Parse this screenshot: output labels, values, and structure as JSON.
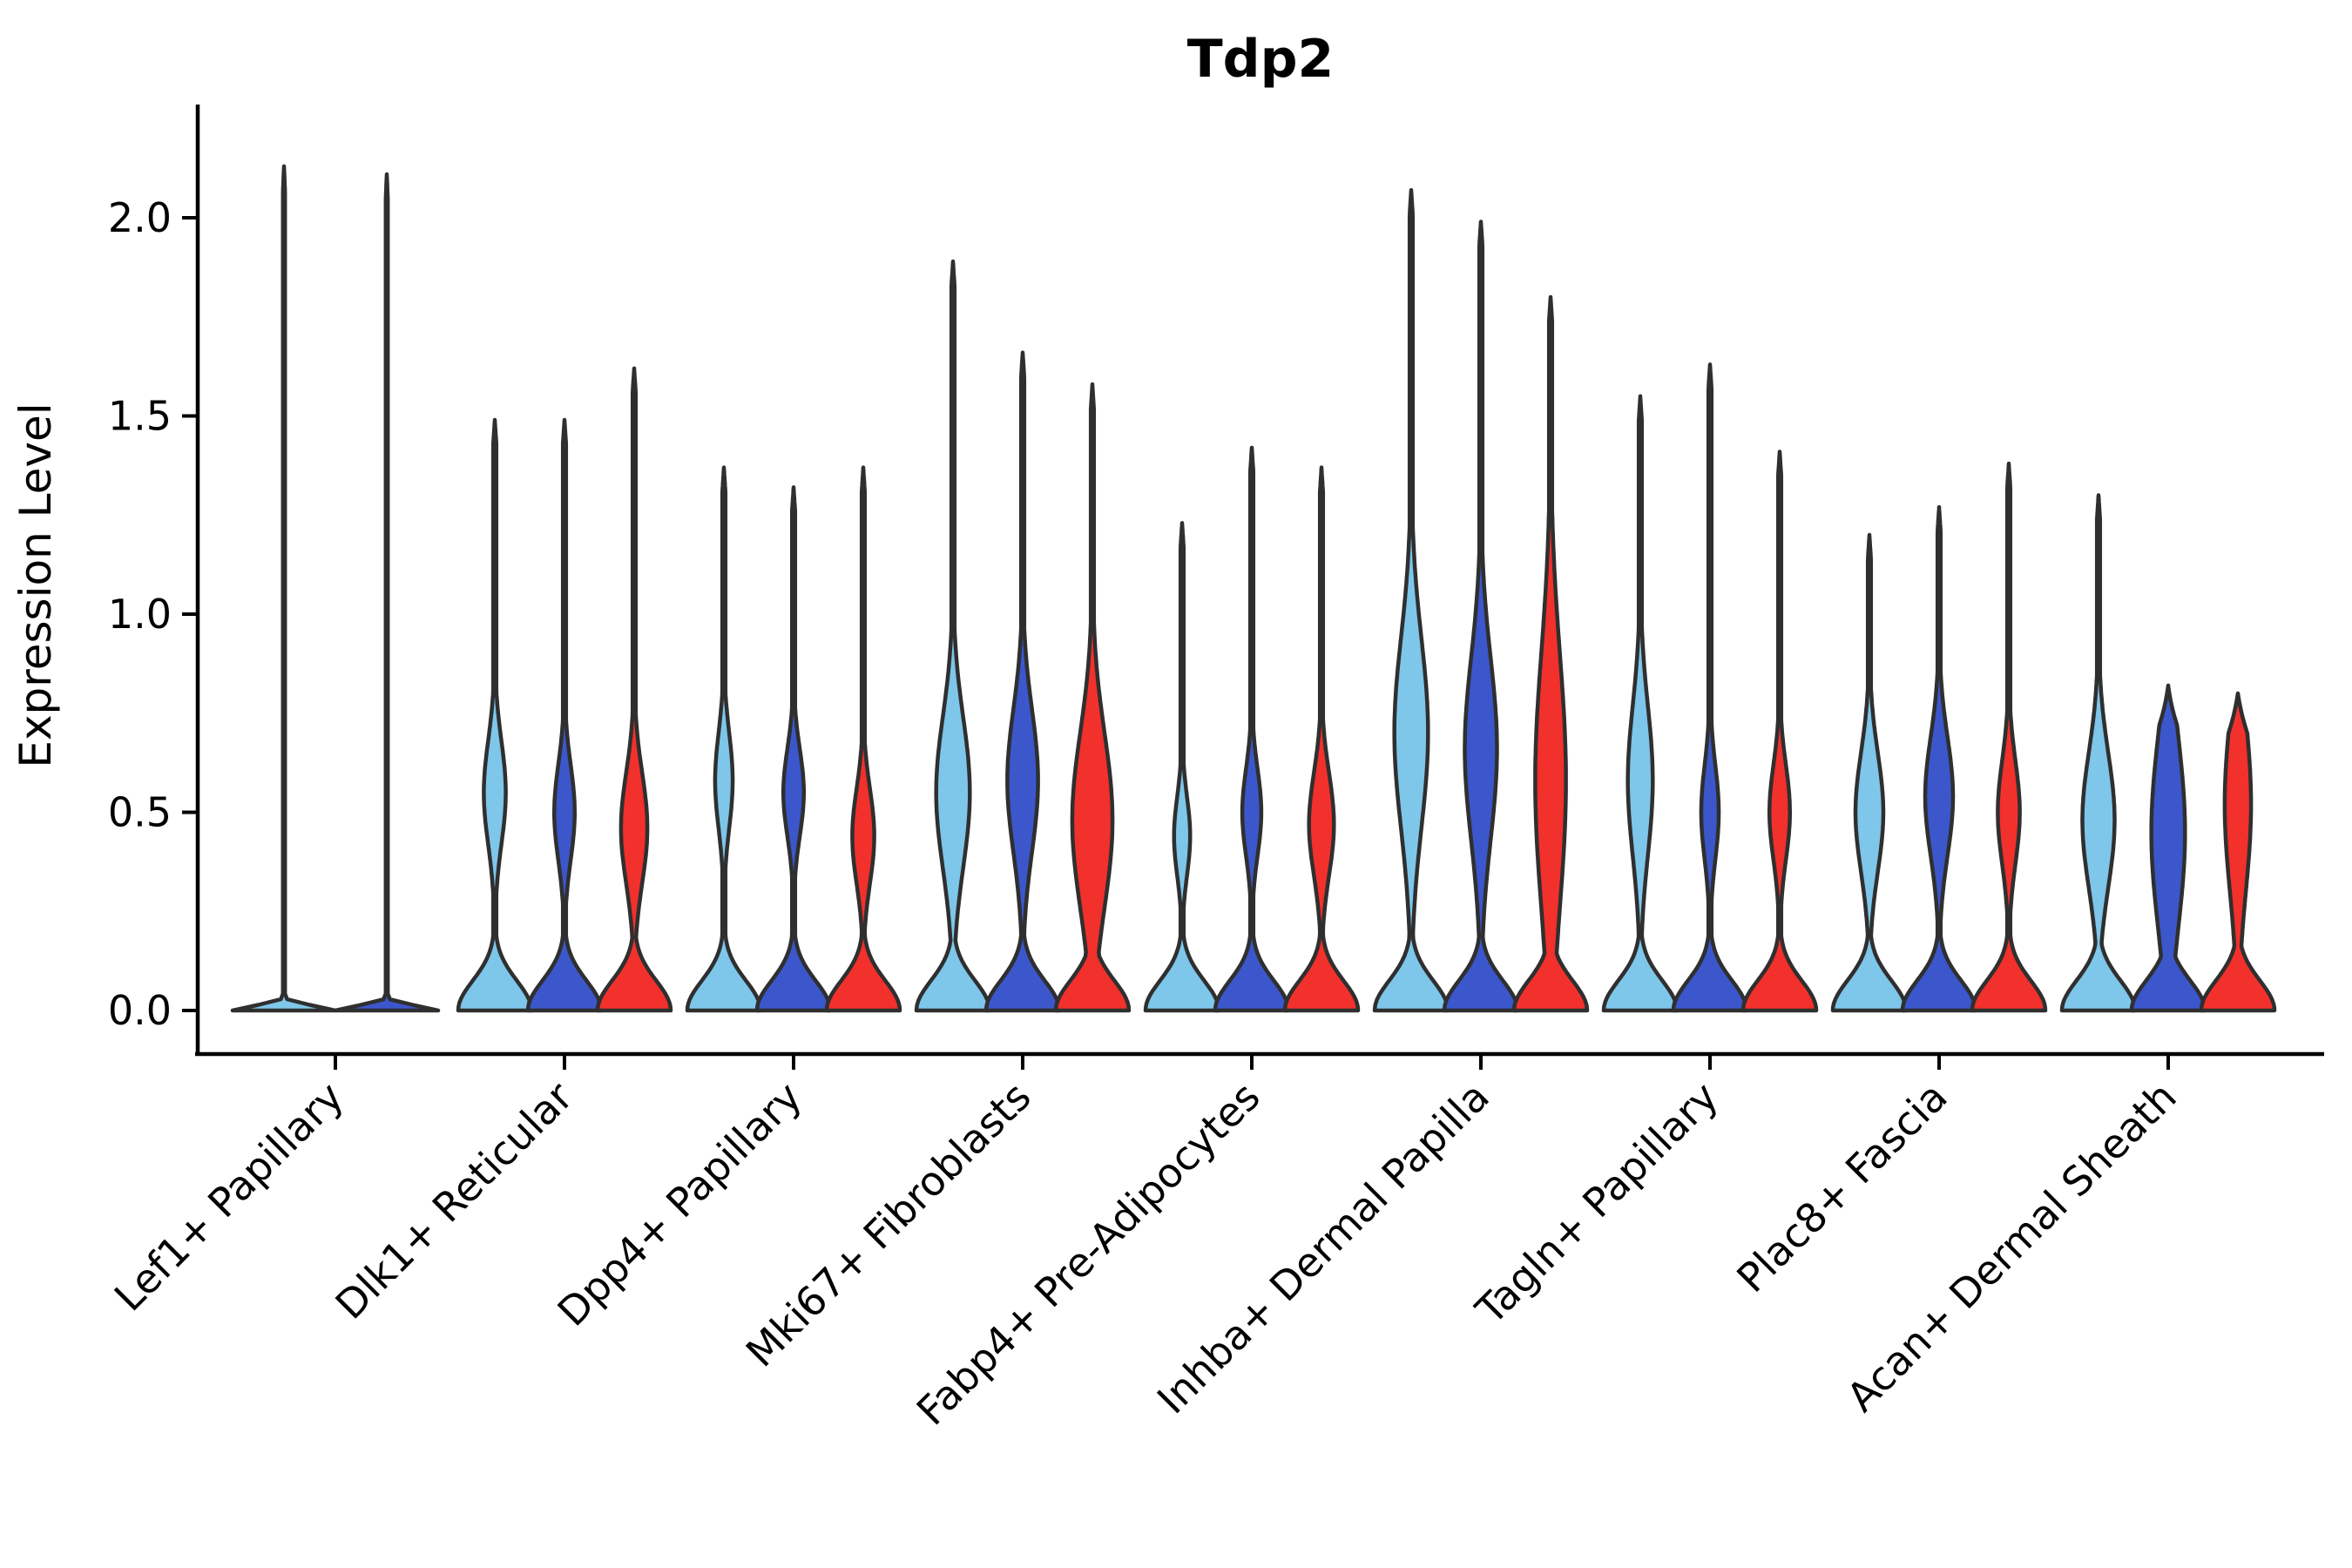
{
  "title": "Tdp2",
  "chart_data": {
    "type": "violin",
    "title": "Tdp2",
    "subtitle": "",
    "xlabel": "",
    "ylabel": "Expression Level",
    "grid": false,
    "legend_position": "none",
    "ylim": [
      -0.06,
      2.28
    ],
    "ytick_labels": [
      "0.0",
      "0.5",
      "1.0",
      "1.5",
      "2.0"
    ],
    "ytick_values": [
      0,
      0.5,
      1.0,
      1.5,
      2.0
    ],
    "split_colors": [
      "#7EC6EA",
      "#3B57CB",
      "#F2302C"
    ],
    "outline_color": "#2F2F2F",
    "axis_color": "#000000",
    "categories": [
      "Lef1+ Papillary",
      "Dlk1+ Reticular",
      "Dpp4+ Papillary",
      "Mki67+ Fibroblasts",
      "Fabp4+ Pre-Adipocytes",
      "Inhba+ Dermal Papilla",
      "Tagln+ Papillary",
      "Plac8+ Fascia",
      "Acan+ Dermal Sheath"
    ],
    "violins": [
      {
        "category": "Lef1+ Papillary",
        "slot_half": 59,
        "items": [
          {
            "split": 0,
            "max": 2.13,
            "offset": -59,
            "bc": 0,
            "bw": 0,
            "bs": 0.1,
            "base_sigma": 0.012,
            "stem": 0.02
          },
          {
            "split": 1,
            "max": 2.11,
            "offset": 59,
            "bc": 0,
            "bw": 0,
            "bs": 0.1,
            "base_sigma": 0.012,
            "stem": 0.02
          }
        ]
      },
      {
        "category": "Dlk1+ Reticular",
        "slot_half": 42,
        "items": [
          {
            "split": 0,
            "max": 1.49,
            "offset": -80,
            "bc": 0.55,
            "bw": 0.3,
            "bs": 0.13
          },
          {
            "split": 1,
            "max": 1.49,
            "offset": 0,
            "bc": 0.5,
            "bw": 0.28,
            "bs": 0.12
          },
          {
            "split": 2,
            "max": 1.62,
            "offset": 80,
            "bc": 0.46,
            "bw": 0.36,
            "bs": 0.14
          }
        ]
      },
      {
        "category": "Dpp4+ Papillary",
        "slot_half": 42,
        "items": [
          {
            "split": 0,
            "max": 1.37,
            "offset": -80,
            "bc": 0.58,
            "bw": 0.24,
            "bs": 0.12
          },
          {
            "split": 1,
            "max": 1.32,
            "offset": 0,
            "bc": 0.55,
            "bw": 0.28,
            "bs": 0.11
          },
          {
            "split": 2,
            "max": 1.37,
            "offset": 80,
            "bc": 0.44,
            "bw": 0.3,
            "bs": 0.12
          }
        ]
      },
      {
        "category": "Mki67+ Fibroblasts",
        "slot_half": 42,
        "items": [
          {
            "split": 0,
            "max": 1.89,
            "offset": -80,
            "bc": 0.55,
            "bw": 0.46,
            "bs": 0.19
          },
          {
            "split": 1,
            "max": 1.66,
            "offset": 0,
            "bc": 0.58,
            "bw": 0.42,
            "bs": 0.18
          },
          {
            "split": 2,
            "max": 1.58,
            "offset": 80,
            "bc": 0.48,
            "bw": 0.55,
            "bs": 0.22
          }
        ]
      },
      {
        "category": "Fabp4+ Pre-Adipocytes",
        "slot_half": 42,
        "items": [
          {
            "split": 0,
            "max": 1.23,
            "offset": -80,
            "bc": 0.44,
            "bw": 0.22,
            "bs": 0.1
          },
          {
            "split": 1,
            "max": 1.42,
            "offset": 0,
            "bc": 0.5,
            "bw": 0.26,
            "bs": 0.11
          },
          {
            "split": 2,
            "max": 1.37,
            "offset": 80,
            "bc": 0.47,
            "bw": 0.34,
            "bs": 0.13
          }
        ]
      },
      {
        "category": "Inhba+ Dermal Papilla",
        "slot_half": 42,
        "items": [
          {
            "split": 0,
            "max": 2.07,
            "offset": -80,
            "bc": 0.7,
            "bw": 0.46,
            "bs": 0.24
          },
          {
            "split": 1,
            "max": 1.99,
            "offset": 0,
            "bc": 0.66,
            "bw": 0.44,
            "bs": 0.23
          },
          {
            "split": 2,
            "max": 1.8,
            "offset": 80,
            "bc": 0.58,
            "bw": 0.42,
            "bs": 0.32
          }
        ]
      },
      {
        "category": "Tagln+ Papillary",
        "slot_half": 42,
        "items": [
          {
            "split": 0,
            "max": 1.55,
            "offset": -80,
            "bc": 0.58,
            "bw": 0.34,
            "bs": 0.19
          },
          {
            "split": 1,
            "max": 1.63,
            "offset": 0,
            "bc": 0.5,
            "bw": 0.24,
            "bs": 0.12
          },
          {
            "split": 2,
            "max": 1.41,
            "offset": 80,
            "bc": 0.5,
            "bw": 0.28,
            "bs": 0.12
          }
        ]
      },
      {
        "category": "Plac8+ Fascia",
        "slot_half": 42,
        "items": [
          {
            "split": 0,
            "max": 1.2,
            "offset": -80,
            "bc": 0.5,
            "bw": 0.38,
            "bs": 0.15
          },
          {
            "split": 1,
            "max": 1.27,
            "offset": 0,
            "bc": 0.54,
            "bw": 0.38,
            "bs": 0.15
          },
          {
            "split": 2,
            "max": 1.38,
            "offset": 80,
            "bc": 0.5,
            "bw": 0.3,
            "bs": 0.13
          }
        ]
      },
      {
        "category": "Acan+ Dermal Sheath",
        "slot_half": 42,
        "items": [
          {
            "split": 0,
            "max": 1.3,
            "offset": -80,
            "bc": 0.48,
            "bw": 0.44,
            "bs": 0.17
          },
          {
            "split": 1,
            "max": 0.82,
            "offset": 0,
            "bc": 0.45,
            "bw": 0.46,
            "bs": 0.24,
            "tip": 0.1
          },
          {
            "split": 2,
            "max": 0.8,
            "offset": 80,
            "bc": 0.52,
            "bw": 0.36,
            "bs": 0.22,
            "tip": 0.1
          }
        ]
      }
    ]
  }
}
